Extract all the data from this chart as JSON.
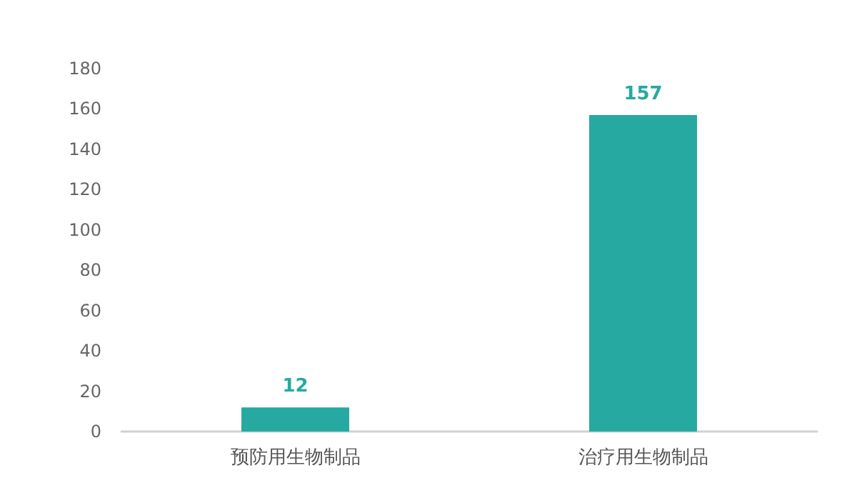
{
  "chart_data": {
    "type": "bar",
    "categories": [
      "预防用生物制品",
      "治疗用生物制品"
    ],
    "values": [
      12,
      157
    ],
    "color": "#26a9a0",
    "ylim": [
      0,
      180
    ],
    "yticks": [
      0,
      20,
      40,
      60,
      80,
      100,
      120,
      140,
      160,
      180
    ],
    "grid": false,
    "data_labels": true
  }
}
